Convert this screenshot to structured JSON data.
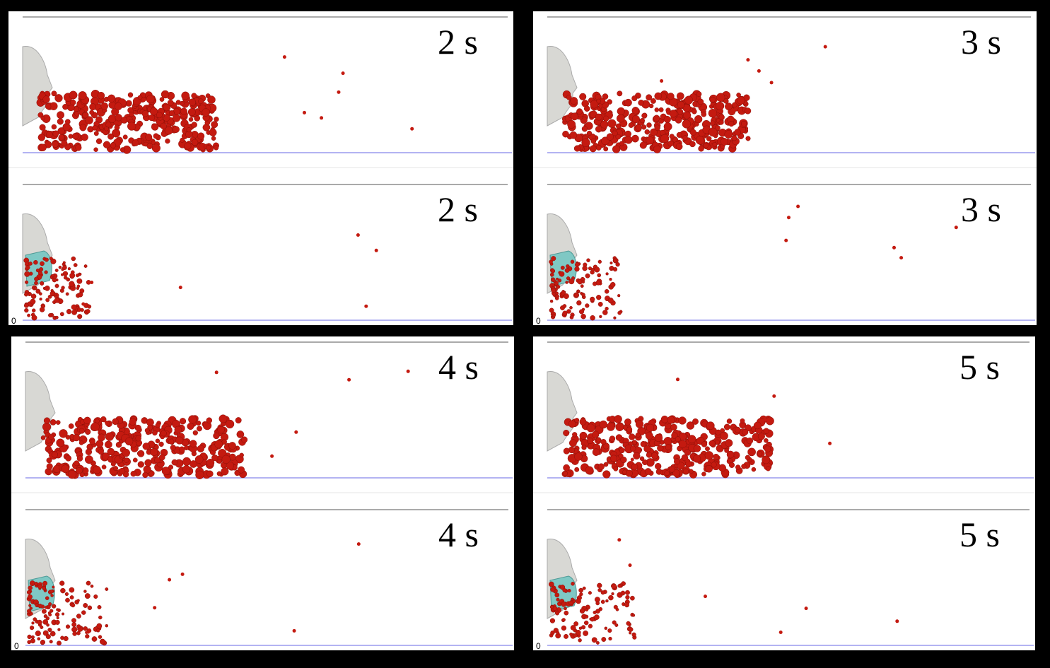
{
  "panels": [
    {
      "upper_label": "2 s",
      "lower_label": "2 s",
      "axis_label": "0"
    },
    {
      "upper_label": "3 s",
      "lower_label": "3 s",
      "axis_label": "0"
    },
    {
      "upper_label": "4 s",
      "lower_label": "4 s",
      "axis_label": "0"
    },
    {
      "upper_label": "5 s",
      "lower_label": "5 s",
      "axis_label": "0"
    }
  ]
}
